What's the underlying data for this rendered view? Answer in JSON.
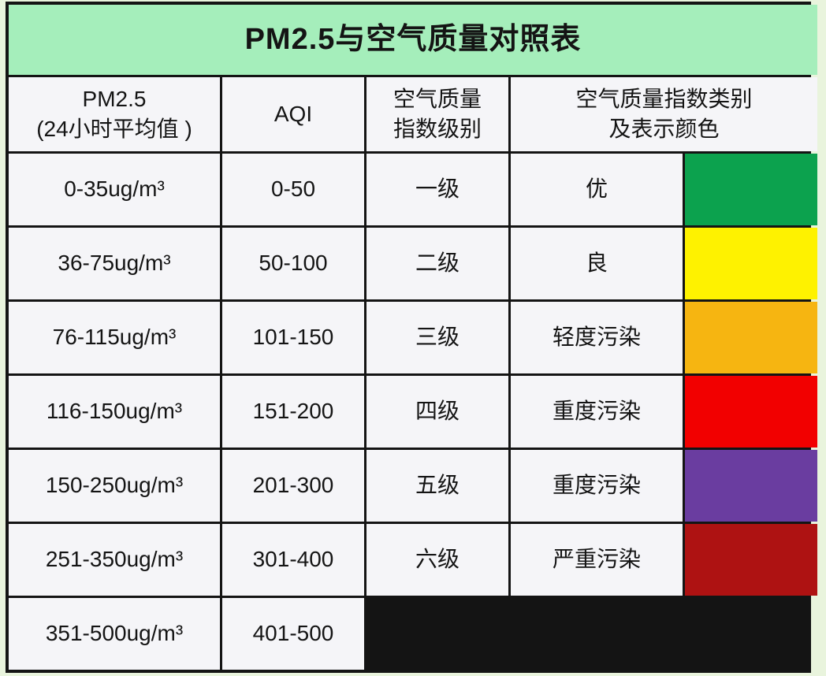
{
  "page": {
    "title": "PM2.5与空气质量对照表"
  },
  "colors": {
    "page_bg": "#e9f4dd",
    "title_bg": "#a5eebb",
    "cell_bg": "#f5f5f8",
    "border": "#141414",
    "green": "#0ca24e",
    "yellow": "#fef200",
    "orange": "#f6b511",
    "red": "#f20000",
    "purple": "#6a3da0",
    "dark_red": "#ae1212"
  },
  "header": {
    "pm25": {
      "line1": "PM2.5",
      "line2": "(24小时平均值 )"
    },
    "aqi": {
      "line1": "AQI"
    },
    "level": {
      "line1": "空气质量",
      "line2": "指数级别"
    },
    "category": {
      "line1": "空气质量指数类别",
      "line2": "及表示颜色"
    }
  },
  "table": {
    "rows": [
      {
        "pm25": "0-35ug/m³",
        "aqi": "0-50",
        "level": "一级",
        "category": "优",
        "color": "#0ca24e",
        "color_name": "green"
      },
      {
        "pm25": "36-75ug/m³",
        "aqi": "50-100",
        "level": "二级",
        "category": "良",
        "color": "#fef200",
        "color_name": "yellow"
      },
      {
        "pm25": "76-115ug/m³",
        "aqi": "101-150",
        "level": "三级",
        "category": "轻度污染",
        "color": "#f6b511",
        "color_name": "orange"
      },
      {
        "pm25": "116-150ug/m³",
        "aqi": "151-200",
        "level": "四级",
        "category": "重度污染",
        "color": "#f20000",
        "color_name": "red"
      },
      {
        "pm25": "150-250ug/m³",
        "aqi": "201-300",
        "level": "五级",
        "category": "重度污染",
        "color": "#6a3da0",
        "color_name": "purple"
      }
    ],
    "merged": {
      "rows": [
        {
          "pm25": "251-350ug/m³",
          "aqi": "301-400"
        },
        {
          "pm25": "351-500ug/m³",
          "aqi": "401-500"
        }
      ],
      "level": "六级",
      "category": "严重污染",
      "color": "#ae1212",
      "color_name": "dark-red"
    }
  },
  "chart_data": {
    "type": "table",
    "title": "PM2.5与空气质量对照表",
    "columns": [
      "PM2.5 (24小时平均值)",
      "AQI",
      "空气质量指数级别",
      "空气质量指数类别",
      "表示颜色"
    ],
    "rows": [
      [
        "0-35ug/m³",
        "0-50",
        "一级",
        "优",
        "#0ca24e"
      ],
      [
        "36-75ug/m³",
        "50-100",
        "二级",
        "良",
        "#fef200"
      ],
      [
        "76-115ug/m³",
        "101-150",
        "三级",
        "轻度污染",
        "#f6b511"
      ],
      [
        "116-150ug/m³",
        "151-200",
        "四级",
        "重度污染",
        "#f20000"
      ],
      [
        "150-250ug/m³",
        "201-300",
        "五级",
        "重度污染",
        "#6a3da0"
      ],
      [
        "251-350ug/m³",
        "301-400",
        "六级",
        "严重污染",
        "#ae1212"
      ],
      [
        "351-500ug/m³",
        "401-500",
        "六级",
        "严重污染",
        "#ae1212"
      ]
    ]
  }
}
